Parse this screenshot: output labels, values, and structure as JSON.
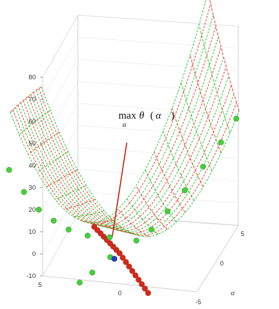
{
  "chart_data": {
    "type": "surface3d",
    "title": "",
    "annotation": {
      "operator": "max",
      "subscript": "α",
      "symbol": "θ",
      "paren_open": "(",
      "argument": "α",
      "paren_close": ")"
    },
    "zlim": [
      -10,
      80
    ],
    "z_ticks": [
      "-10",
      "0",
      "10",
      "20",
      "30",
      "40",
      "50",
      "60",
      "70",
      "80"
    ],
    "x_ticks": [
      "5",
      "0"
    ],
    "alpha_axis": {
      "label": "α",
      "ticks": [
        "5",
        "0",
        "-5"
      ]
    },
    "grid": true,
    "legend": "none",
    "surface": {
      "description_hint": "parabolic valley",
      "mesh_color_a": "#e8473a",
      "mesh_color_b": "#36c93a"
    },
    "series": [
      {
        "name": "",
        "marker": "red-circle",
        "color": "#d32a1a",
        "points": [
          [
            -4.5,
            -3.5,
            1
          ],
          [
            -4.0,
            -3.1,
            2
          ],
          [
            -3.5,
            -2.7,
            3
          ],
          [
            -3.0,
            -2.3,
            4
          ],
          [
            -2.5,
            -1.9,
            5
          ],
          [
            -2.0,
            -1.5,
            6
          ],
          [
            -1.5,
            -1.1,
            7
          ],
          [
            -1.0,
            -0.7,
            8
          ],
          [
            -0.5,
            -0.3,
            9
          ],
          [
            0.0,
            0.1,
            10
          ],
          [
            0.5,
            0.5,
            10.5
          ],
          [
            1.0,
            0.9,
            11
          ],
          [
            1.5,
            1.3,
            11.5
          ],
          [
            2.0,
            1.7,
            12
          ],
          [
            2.5,
            2.1,
            12.5
          ],
          [
            3.0,
            2.5,
            13
          ],
          [
            3.5,
            2.9,
            13.5
          ],
          [
            4.0,
            3.3,
            14
          ]
        ]
      },
      {
        "name": "",
        "marker": "green-circle",
        "color": "#3fd23a",
        "points": [
          [
            5,
            -4.5,
            72
          ],
          [
            4.6,
            -3.6,
            57
          ],
          [
            4.2,
            -2.8,
            45
          ],
          [
            3.8,
            -2.0,
            35
          ],
          [
            3.4,
            -1.2,
            28
          ],
          [
            3.0,
            -0.4,
            22
          ],
          [
            2.4,
            0.5,
            17
          ],
          [
            1.6,
            1.4,
            14
          ],
          [
            -4.5,
            4.5,
            60
          ],
          [
            -4.0,
            3.8,
            51
          ],
          [
            -3.4,
            3.0,
            42
          ],
          [
            -2.7,
            2.3,
            33
          ],
          [
            -2.0,
            1.7,
            25
          ],
          [
            -1.3,
            1.2,
            18
          ],
          [
            -0.6,
            0.8,
            14
          ],
          [
            1.0,
            -1.0,
            4
          ],
          [
            1.4,
            -1.6,
            1
          ],
          [
            0.4,
            -0.2,
            9
          ]
        ]
      },
      {
        "name": "",
        "marker": "blue-circle",
        "color": "#1f3fc4",
        "points": [
          [
            0.2,
            -0.1,
            8
          ]
        ]
      }
    ],
    "vector": {
      "color": "#c81f10",
      "from_z": 8,
      "to_z": 48
    }
  }
}
